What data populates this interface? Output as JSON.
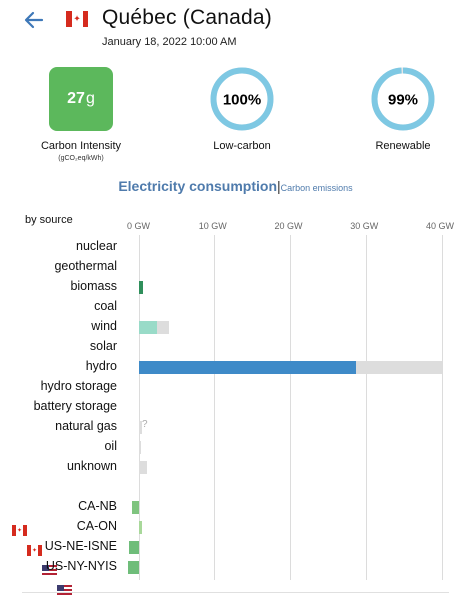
{
  "header": {
    "zone_name": "Québec (Canada)",
    "datetime": "January 18, 2022 10:00 AM",
    "back_icon": "arrow-left-icon",
    "flag_icon": "flag-canada-icon"
  },
  "metrics": {
    "carbon_intensity": {
      "value": "27",
      "unit": "g",
      "label": "Carbon Intensity",
      "sublabel": "(gCO₂eq/kWh)",
      "color": "#5cb85c"
    },
    "low_carbon": {
      "value": "100%",
      "label": "Low-carbon",
      "fraction": 1.0
    },
    "renewable": {
      "value": "99%",
      "label": "Renewable",
      "fraction": 0.99
    },
    "ring_color": "#7ec8e3"
  },
  "mode": {
    "active": "Electricity consumption",
    "separator": "|",
    "other": "Carbon emissions"
  },
  "chart_data": {
    "type": "bar",
    "title": "by source",
    "xlabel": "",
    "ticks": [
      "0 GW",
      "10 GW",
      "20 GW",
      "30 GW",
      "40 GW"
    ],
    "xlim": [
      0,
      40
    ],
    "sources": [
      {
        "name": "nuclear",
        "value": 0,
        "capacity": 0,
        "color": ""
      },
      {
        "name": "geothermal",
        "value": 0,
        "capacity": 0,
        "color": ""
      },
      {
        "name": "biomass",
        "value": 0.5,
        "capacity": 0.5,
        "color": "#2f8f5b"
      },
      {
        "name": "coal",
        "value": 0,
        "capacity": 0,
        "color": ""
      },
      {
        "name": "wind",
        "value": 2.4,
        "capacity": 3.9,
        "color": "#99dbc8"
      },
      {
        "name": "solar",
        "value": 0,
        "capacity": 0,
        "color": ""
      },
      {
        "name": "hydro",
        "value": 28.7,
        "capacity": 40.0,
        "color": "#3e8ac8"
      },
      {
        "name": "hydro storage",
        "value": 0,
        "capacity": 0,
        "color": ""
      },
      {
        "name": "battery storage",
        "value": 0,
        "capacity": 0,
        "color": ""
      },
      {
        "name": "natural gas",
        "value": 0,
        "capacity": 0.4,
        "color": "",
        "unknown": "?"
      },
      {
        "name": "oil",
        "value": 0,
        "capacity": 0.2,
        "color": ""
      },
      {
        "name": "unknown",
        "value": 0,
        "capacity": 1.1,
        "color": ""
      }
    ],
    "exchanges": [
      {
        "name": "CA-NB",
        "value": -0.9,
        "flag": "flag-canada-icon",
        "color": "#7fc47f"
      },
      {
        "name": "CA-ON",
        "value": 0.4,
        "flag": "flag-canada-icon",
        "color": "#a8d89a"
      },
      {
        "name": "US-NE-ISNE",
        "value": -1.3,
        "flag": "flag-usa-icon",
        "color": "#6fbd7a"
      },
      {
        "name": "US-NY-NYIS",
        "value": -1.4,
        "flag": "flag-usa-icon",
        "color": "#6fbd7a"
      }
    ],
    "capacity_color": "#dddddd"
  }
}
